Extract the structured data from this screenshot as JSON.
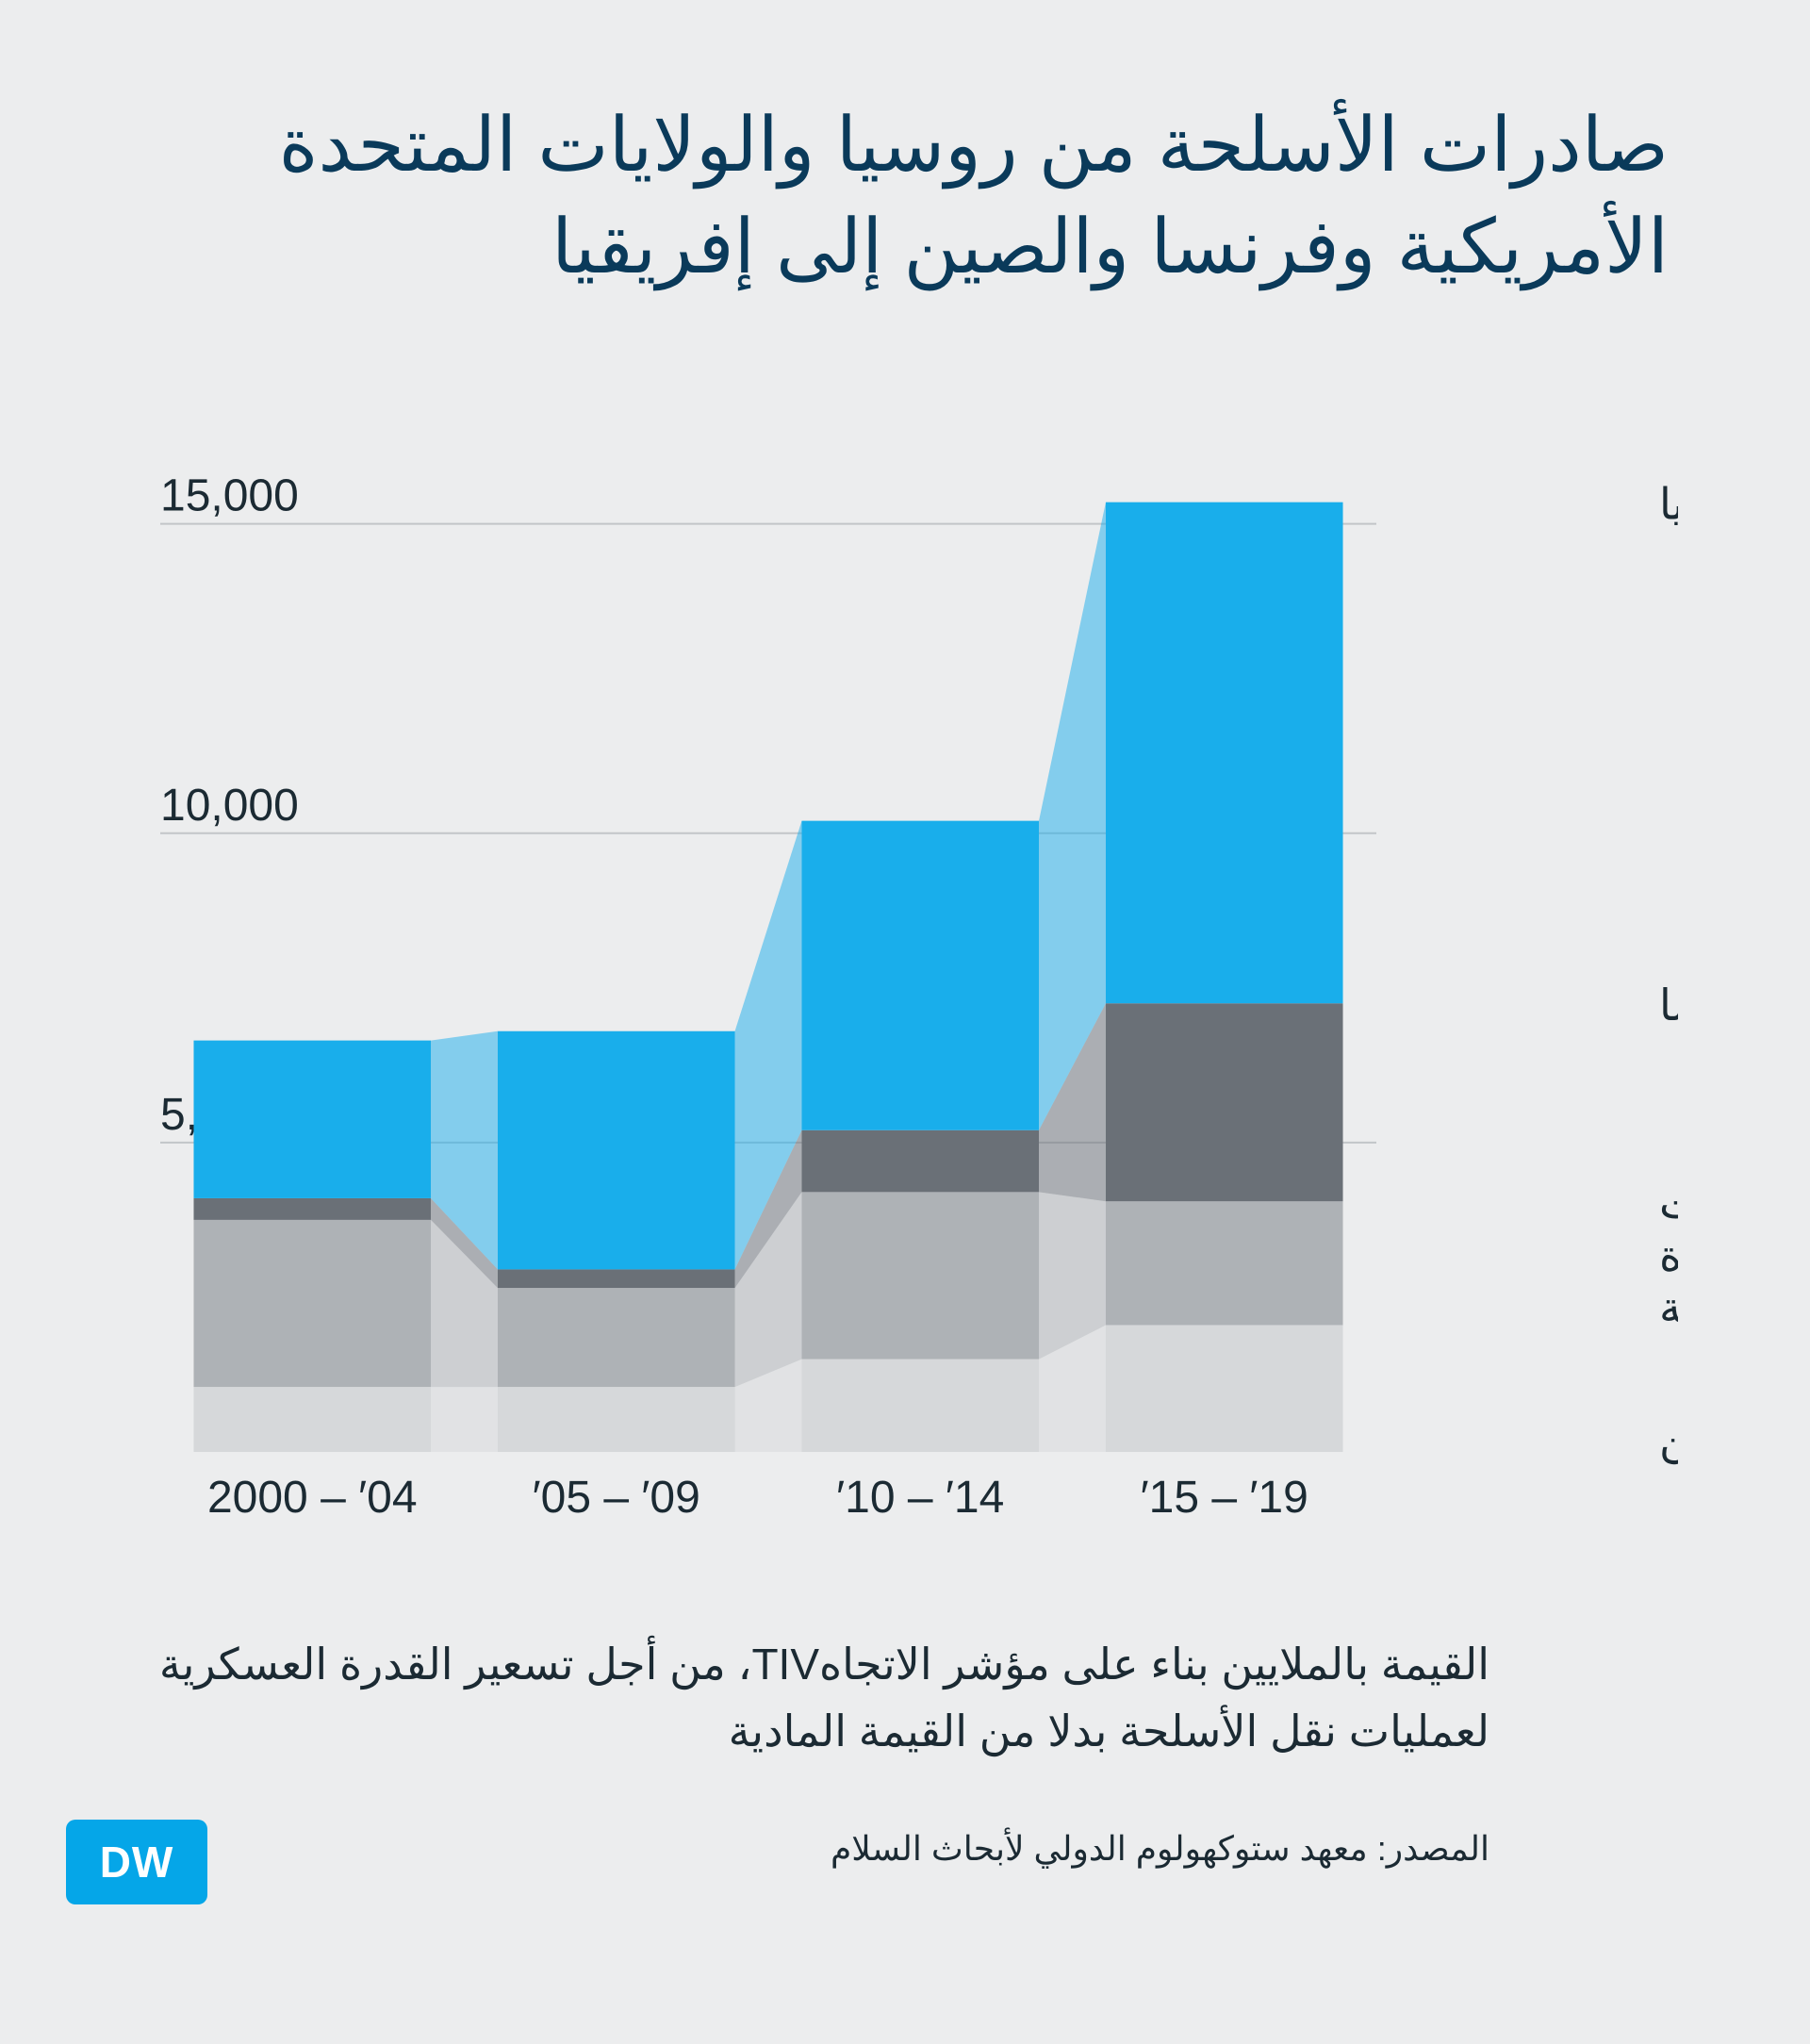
{
  "title": "صادرات الأسلحة من روسيا والولايات المتحدة الأمريكية وفرنسا والصين إلى إفريقيا",
  "title_fontsize": 80,
  "title_color": "#0a3a5a",
  "caption": "القيمة بالملايين بناء على مؤشر الاتجاهTIV، من أجل تسعير القدرة العسكرية لعمليات نقل الأسلحة بدلا من القيمة المادية",
  "caption_fontsize": 46,
  "source": "المصدر: معهد ستوكهولوم الدولي لأبحاث السلام",
  "source_fontsize": 36,
  "logo_text": "DW",
  "logo_bg": "#05a6e8",
  "background_color": "#ecedee",
  "text_color": "#1b2a33",
  "chart": {
    "type": "stacked-bar-with-connector-area",
    "categories": [
      "2000 – ′04",
      "′05 – ′09",
      "′10 – ′14",
      "′15 – ′19"
    ],
    "series": [
      {
        "name": "الصين",
        "color": "#d6d8da",
        "values": [
          1050,
          1050,
          1500,
          2050
        ]
      },
      {
        "name": "الولايات المتحدة الأمريكية",
        "color": "#aeb2b6",
        "values": [
          2700,
          1600,
          2700,
          2000
        ]
      },
      {
        "name": "فرنسا",
        "color": "#6a7077",
        "values": [
          350,
          300,
          1000,
          3200
        ]
      },
      {
        "name": "روسيا",
        "color": "#19aeeb",
        "values": [
          2550,
          3850,
          5000,
          8100
        ]
      }
    ],
    "connector_alpha": 0.5,
    "ylim": [
      0,
      16000
    ],
    "yticks": [
      5000,
      10000,
      15000
    ],
    "ytick_labels": [
      "5,000",
      "10,000",
      "15,000"
    ],
    "gridline_color": "#c2c5c8",
    "axis_font_size": 48,
    "legend_font_size": 46,
    "bar_width_ratio": 0.78,
    "legend_align_to_top": {
      "روسيا": 3,
      "فرنسا": 2,
      "الولايات المتحدة الأمريكية": 1,
      "الصين": 0
    }
  }
}
